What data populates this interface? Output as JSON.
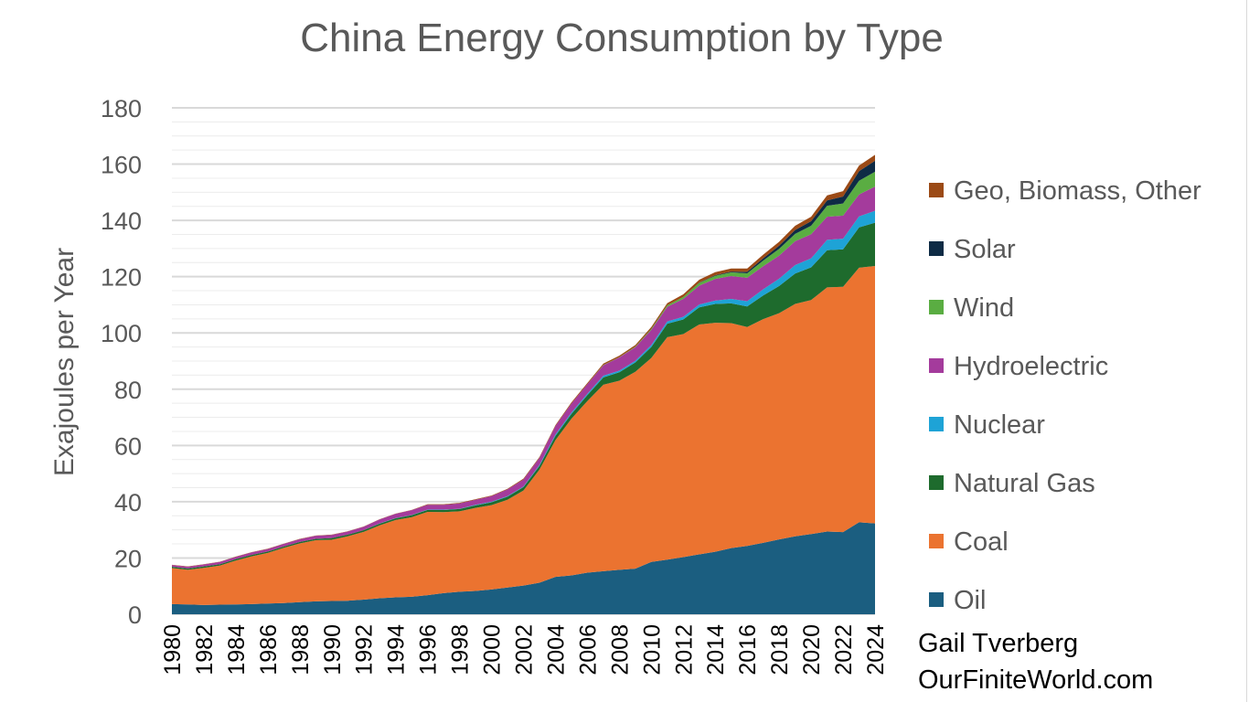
{
  "credit": {
    "author": "Gail Tverberg",
    "site": "OurFiniteWorld.com"
  },
  "chart_data": {
    "type": "area",
    "stacked": true,
    "title": "China Energy Consumption by Type",
    "xlabel": "",
    "ylabel": "Exajoules per Year",
    "ylim": [
      0,
      180
    ],
    "yticks": [
      0,
      20,
      40,
      60,
      80,
      100,
      120,
      140,
      160,
      180
    ],
    "xticks": [
      1980,
      1982,
      1984,
      1986,
      1988,
      1990,
      1992,
      1994,
      1996,
      1998,
      2000,
      2002,
      2004,
      2006,
      2008,
      2010,
      2012,
      2014,
      2016,
      2018,
      2020,
      2022,
      2024
    ],
    "minor_grid_step": 5,
    "grid": true,
    "legend_position": "right",
    "x": [
      1980,
      1981,
      1982,
      1983,
      1984,
      1985,
      1986,
      1987,
      1988,
      1989,
      1990,
      1991,
      1992,
      1993,
      1994,
      1995,
      1996,
      1997,
      1998,
      1999,
      2000,
      2001,
      2002,
      2003,
      2004,
      2005,
      2006,
      2007,
      2008,
      2009,
      2010,
      2011,
      2012,
      2013,
      2014,
      2015,
      2016,
      2017,
      2018,
      2019,
      2020,
      2021,
      2022,
      2023,
      2024
    ],
    "series": [
      {
        "name": "Oil",
        "color": "#1b5e80",
        "values": [
          3.6,
          3.5,
          3.3,
          3.4,
          3.5,
          3.6,
          3.8,
          4.0,
          4.3,
          4.6,
          4.7,
          4.8,
          5.2,
          5.7,
          6.0,
          6.2,
          6.8,
          7.5,
          8.0,
          8.3,
          8.8,
          9.5,
          10.2,
          11.2,
          13.3,
          13.8,
          14.8,
          15.3,
          15.8,
          16.2,
          18.6,
          19.4,
          20.3,
          21.3,
          22.2,
          23.5,
          24.3,
          25.4,
          26.6,
          27.7,
          28.5,
          29.4,
          29.2,
          32.7,
          32.3
        ]
      },
      {
        "name": "Coal",
        "color": "#eb7330",
        "values": [
          12.8,
          12.3,
          13.2,
          13.9,
          15.6,
          17.0,
          18.0,
          19.6,
          20.9,
          21.7,
          21.8,
          22.9,
          24.1,
          25.9,
          27.5,
          28.3,
          29.6,
          28.8,
          28.6,
          29.5,
          30.0,
          31.2,
          33.8,
          40.2,
          48.6,
          55.7,
          61.0,
          66.3,
          67.2,
          70.0,
          72.5,
          79.1,
          79.3,
          81.7,
          81.4,
          80.0,
          77.8,
          79.5,
          80.4,
          82.6,
          83.2,
          86.8,
          87.2,
          90.5,
          91.5
        ]
      },
      {
        "name": "Natural Gas",
        "color": "#1e6b2d",
        "values": [
          0.5,
          0.5,
          0.5,
          0.5,
          0.5,
          0.5,
          0.5,
          0.5,
          0.5,
          0.5,
          0.6,
          0.6,
          0.6,
          0.6,
          0.6,
          0.7,
          0.7,
          0.8,
          0.8,
          0.9,
          1.0,
          1.1,
          1.2,
          1.3,
          1.5,
          1.7,
          2.1,
          2.6,
          3.0,
          3.3,
          3.9,
          4.8,
          5.2,
          6.1,
          6.7,
          7.0,
          7.3,
          8.4,
          9.7,
          10.8,
          11.6,
          13.2,
          13.3,
          14.3,
          15.4
        ]
      },
      {
        "name": "Nuclear",
        "color": "#1ea3d6",
        "values": [
          0,
          0,
          0,
          0,
          0,
          0,
          0,
          0,
          0,
          0,
          0,
          0,
          0,
          0.1,
          0.1,
          0.1,
          0.1,
          0.1,
          0.1,
          0.2,
          0.2,
          0.2,
          0.2,
          0.4,
          0.5,
          0.5,
          0.5,
          0.6,
          0.6,
          0.6,
          0.7,
          0.8,
          0.9,
          1.0,
          1.2,
          1.6,
          1.9,
          2.2,
          2.6,
          3.0,
          3.2,
          3.7,
          3.8,
          3.9,
          4.2
        ]
      },
      {
        "name": "Hydroelectric",
        "color": "#a43b9c",
        "values": [
          0.6,
          0.6,
          0.7,
          0.8,
          0.8,
          0.9,
          0.9,
          0.9,
          1.0,
          1.1,
          1.1,
          1.1,
          1.2,
          1.4,
          1.5,
          1.7,
          1.7,
          1.7,
          1.9,
          1.8,
          2.0,
          2.4,
          2.5,
          2.5,
          3.0,
          3.2,
          3.4,
          3.7,
          4.7,
          4.8,
          5.4,
          5.2,
          6.4,
          6.7,
          7.7,
          8.1,
          8.3,
          8.2,
          8.2,
          8.5,
          8.6,
          8.2,
          8.2,
          7.8,
          8.6
        ]
      },
      {
        "name": "Wind",
        "color": "#5aad42",
        "values": [
          0,
          0,
          0,
          0,
          0,
          0,
          0,
          0,
          0,
          0,
          0,
          0,
          0,
          0,
          0,
          0,
          0,
          0,
          0,
          0,
          0,
          0,
          0,
          0,
          0,
          0,
          0,
          0.1,
          0.1,
          0.2,
          0.3,
          0.5,
          0.7,
          1.0,
          1.1,
          1.3,
          1.6,
          2.0,
          2.4,
          2.6,
          3.0,
          3.9,
          4.3,
          4.9,
          5.3
        ]
      },
      {
        "name": "Solar",
        "color": "#0e2b45",
        "values": [
          0,
          0,
          0,
          0,
          0,
          0,
          0,
          0,
          0,
          0,
          0,
          0,
          0,
          0,
          0,
          0,
          0,
          0,
          0,
          0,
          0,
          0,
          0,
          0,
          0,
          0,
          0,
          0,
          0,
          0,
          0,
          0,
          0,
          0.1,
          0.2,
          0.3,
          0.5,
          0.8,
          1.1,
          1.4,
          1.6,
          1.9,
          2.5,
          3.4,
          3.9
        ]
      },
      {
        "name": "Geo, Biomass, Other",
        "color": "#9b4a16",
        "values": [
          0.1,
          0.1,
          0.1,
          0.1,
          0.1,
          0.1,
          0.1,
          0.1,
          0.1,
          0.1,
          0.1,
          0.1,
          0.1,
          0.1,
          0.1,
          0.1,
          0.2,
          0.2,
          0.2,
          0.2,
          0.2,
          0.2,
          0.3,
          0.3,
          0.3,
          0.4,
          0.4,
          0.5,
          0.5,
          0.6,
          0.7,
          0.8,
          0.9,
          1.0,
          1.1,
          1.1,
          1.2,
          1.3,
          1.4,
          1.5,
          1.6,
          1.8,
          1.9,
          2.0,
          2.1
        ]
      }
    ]
  }
}
